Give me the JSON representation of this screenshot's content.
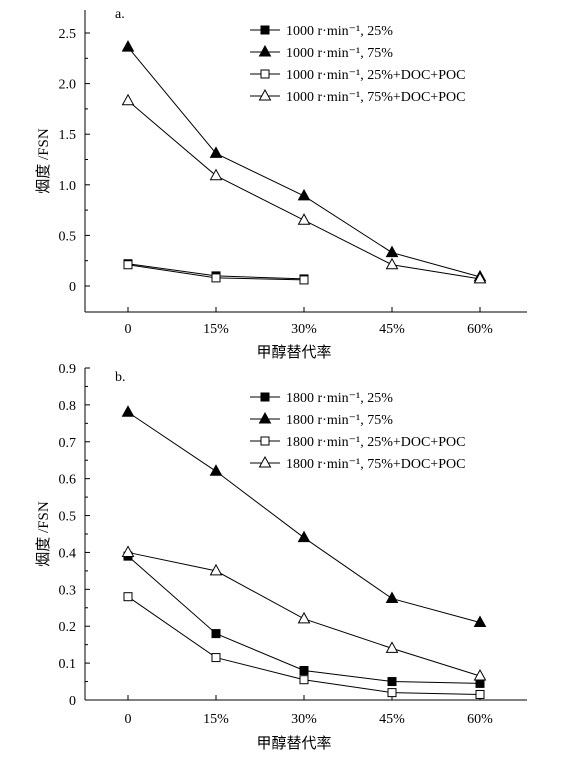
{
  "chart_data": [
    {
      "type": "line",
      "panel_label": "a.",
      "xlabel": "甲醇替代率",
      "ylabel": "烟度 /FSN",
      "categories": [
        "0",
        "15%",
        "30%",
        "45%",
        "60%"
      ],
      "yticks": [
        "0",
        "0.5",
        "1.0",
        "1.5",
        "2.0",
        "2.5"
      ],
      "ylim": [
        -0.25,
        2.75
      ],
      "legend_position": "top-right",
      "series": [
        {
          "name": "1000 r·min⁻¹, 25%",
          "marker": "square-filled",
          "values": [
            0.22,
            0.1,
            0.07,
            null,
            null
          ]
        },
        {
          "name": "1000 r·min⁻¹, 75%",
          "marker": "triangle-filled",
          "values": [
            2.36,
            1.31,
            0.89,
            0.33,
            0.09
          ]
        },
        {
          "name": "1000 r·min⁻¹, 25%+DOC+POC",
          "marker": "square-open",
          "values": [
            0.21,
            0.08,
            0.06,
            null,
            null
          ]
        },
        {
          "name": "1000 r·min⁻¹, 75%+DOC+POC",
          "marker": "triangle-open",
          "values": [
            1.83,
            1.09,
            0.65,
            0.21,
            0.07
          ]
        }
      ]
    },
    {
      "type": "line",
      "panel_label": "b.",
      "xlabel": "甲醇替代率",
      "ylabel": "烟度 /FSN",
      "categories": [
        "0",
        "15%",
        "30%",
        "45%",
        "60%"
      ],
      "yticks": [
        "0",
        "0.1",
        "0.2",
        "0.3",
        "0.4",
        "0.5",
        "0.6",
        "0.7",
        "0.8",
        "0.9"
      ],
      "ylim": [
        0,
        0.9
      ],
      "legend_position": "top-right",
      "series": [
        {
          "name": "1800 r·min⁻¹, 25%",
          "marker": "square-filled",
          "values": [
            0.39,
            0.18,
            0.08,
            0.05,
            0.045
          ]
        },
        {
          "name": "1800 r·min⁻¹, 75%",
          "marker": "triangle-filled",
          "values": [
            0.78,
            0.62,
            0.44,
            0.275,
            0.21
          ]
        },
        {
          "name": "1800 r·min⁻¹, 25%+DOC+POC",
          "marker": "square-open",
          "values": [
            0.28,
            0.115,
            0.055,
            0.02,
            0.015
          ]
        },
        {
          "name": "1800 r·min⁻¹, 75%+DOC+POC",
          "marker": "triangle-open",
          "values": [
            0.4,
            0.35,
            0.22,
            0.14,
            0.065
          ]
        }
      ]
    }
  ]
}
